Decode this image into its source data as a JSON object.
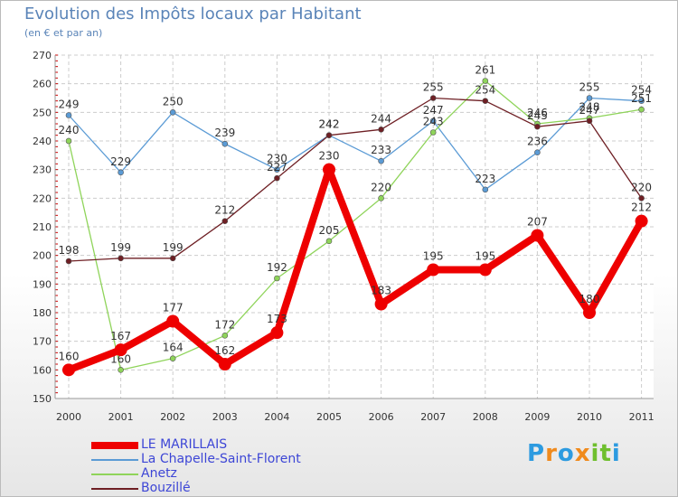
{
  "header": {
    "title": "Evolution des Impôts locaux par Habitant",
    "subtitle": "(en € et par an)"
  },
  "logo": {
    "text": "Proxiti",
    "letters": [
      "P",
      "r",
      "o",
      "x",
      "i",
      "t",
      "i"
    ],
    "colors": [
      "#2d9be0",
      "#f08a1c",
      "#2d9be0",
      "#f08a1c",
      "#6fbf2e",
      "#6fbf2e",
      "#2d9be0"
    ]
  },
  "chart_data": {
    "type": "line",
    "title": "Evolution des Impôts locaux par Habitant",
    "subtitle": "(en € et par an)",
    "xlabel": "",
    "ylabel": "",
    "categories": [
      "2000",
      "2001",
      "2002",
      "2003",
      "2004",
      "2005",
      "2006",
      "2007",
      "2008",
      "2009",
      "2010",
      "2011"
    ],
    "ylim": [
      150,
      270
    ],
    "yticks": [
      150,
      160,
      170,
      180,
      190,
      200,
      210,
      220,
      230,
      240,
      250,
      260,
      270
    ],
    "grid": true,
    "legend_position": "bottom-left",
    "series": [
      {
        "name": "La Chapelle-Saint-Florent",
        "color": "#5b9bd5",
        "values": [
          249,
          229,
          250,
          239,
          230,
          242,
          233,
          247,
          223,
          236,
          255,
          254
        ],
        "labels": [
          "249",
          "229",
          "250",
          "239",
          "230",
          "242",
          "233",
          "247",
          "223",
          "236",
          "255",
          "254"
        ]
      },
      {
        "name": "Anetz",
        "color": "#8fd45a",
        "values": [
          240,
          160,
          164,
          172,
          192,
          205,
          220,
          243,
          261,
          246,
          248,
          251
        ],
        "labels": [
          "240",
          "160",
          "164",
          "172",
          "192",
          "205",
          "220",
          "243",
          "261",
          "246",
          "248",
          "251"
        ]
      },
      {
        "name": "Bouzillé",
        "color": "#6e1f24",
        "values": [
          198,
          199,
          199,
          212,
          227,
          242,
          244,
          255,
          254,
          245,
          247,
          220
        ],
        "labels": [
          "198",
          "199",
          "199",
          "212",
          "227",
          "242",
          "244",
          "255",
          "254",
          "245",
          "247",
          "220"
        ]
      },
      {
        "name": "LE MARILLAIS",
        "color": "#ee0000",
        "values": [
          160,
          167,
          177,
          162,
          173,
          230,
          183,
          195,
          195,
          207,
          180,
          212
        ],
        "labels": [
          "160",
          "167",
          "177",
          "162",
          "173",
          "230",
          "183",
          "195",
          "195",
          "207",
          "180",
          "212"
        ]
      }
    ]
  }
}
